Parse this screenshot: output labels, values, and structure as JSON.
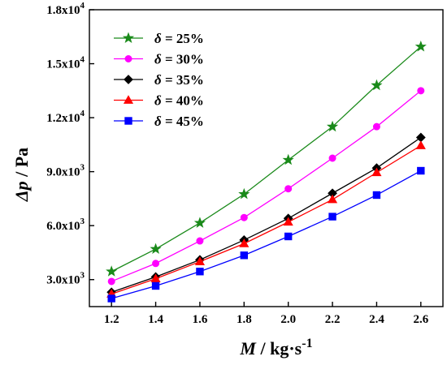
{
  "chart_data": {
    "type": "line",
    "xlabel": {
      "var": "M",
      "unit": " / kg·s",
      "exp": "-1"
    },
    "ylabel": {
      "var": "Δp",
      "unit": " / Pa"
    },
    "xlim": [
      1.1,
      2.7
    ],
    "ylim": [
      1500,
      18000
    ],
    "x_ticks": [
      "1.2",
      "1.4",
      "1.6",
      "1.8",
      "2.0",
      "2.2",
      "2.4",
      "2.6"
    ],
    "y_ticks": [
      {
        "value": 3000,
        "mantissa": "3.0x10",
        "exp": "3"
      },
      {
        "value": 6000,
        "mantissa": "6.0x10",
        "exp": "3"
      },
      {
        "value": 9000,
        "mantissa": "9.0x10",
        "exp": "3"
      },
      {
        "value": 12000,
        "mantissa": "1.2x10",
        "exp": "4"
      },
      {
        "value": 15000,
        "mantissa": "1.5x10",
        "exp": "4"
      },
      {
        "value": 18000,
        "mantissa": "1.8x10",
        "exp": "4"
      }
    ],
    "grid": false,
    "legend_position": "top-left",
    "x": [
      1.2,
      1.4,
      1.6,
      1.8,
      2.0,
      2.2,
      2.4,
      2.6
    ],
    "series": [
      {
        "name": "δ = 25%",
        "symbol": "δ",
        "label": " = 25%",
        "color": "#1a8a1a",
        "marker": "star",
        "values": [
          3450,
          4700,
          6150,
          7750,
          9650,
          11500,
          13800,
          15950
        ]
      },
      {
        "name": "δ = 30%",
        "symbol": "δ",
        "label": " = 30%",
        "color": "#ff00ff",
        "marker": "circle",
        "values": [
          2900,
          3900,
          5150,
          6450,
          8050,
          9750,
          11500,
          13500
        ]
      },
      {
        "name": "δ = 35%",
        "symbol": "δ",
        "label": " = 35%",
        "color": "#000000",
        "marker": "diamond",
        "values": [
          2300,
          3150,
          4100,
          5200,
          6400,
          7800,
          9200,
          10900
        ]
      },
      {
        "name": "δ = 40%",
        "symbol": "δ",
        "label": " = 40%",
        "color": "#ff0000",
        "marker": "triangle",
        "values": [
          2200,
          3050,
          4000,
          5000,
          6200,
          7450,
          8950,
          10450
        ]
      },
      {
        "name": "δ = 45%",
        "symbol": "δ",
        "label": " = 45%",
        "color": "#0000ff",
        "marker": "square",
        "values": [
          1950,
          2650,
          3450,
          4350,
          5400,
          6500,
          7700,
          9050
        ]
      }
    ]
  }
}
